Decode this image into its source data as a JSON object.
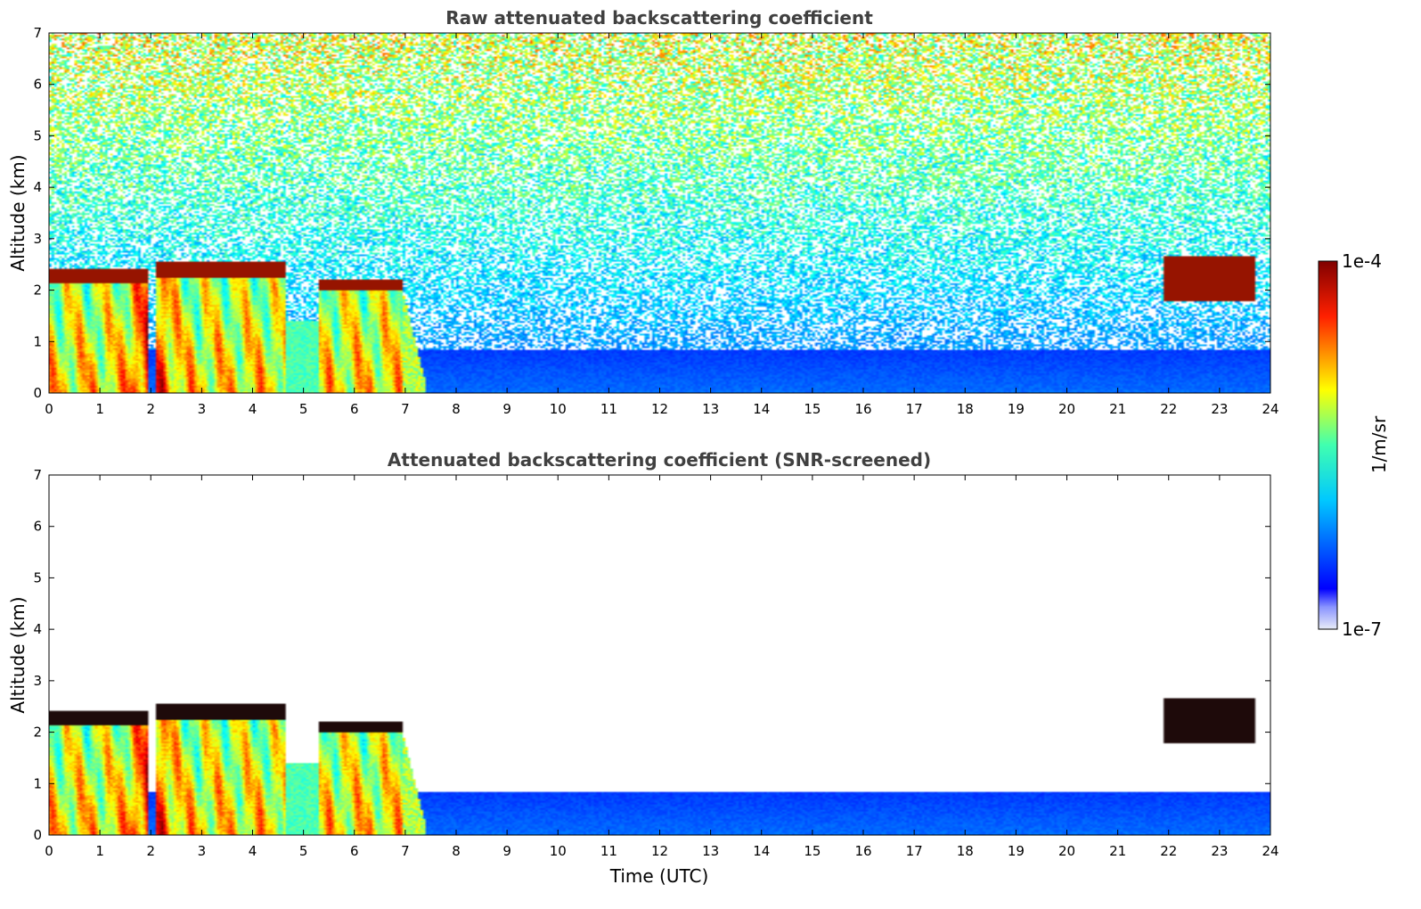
{
  "chart_data": [
    {
      "type": "heatmap",
      "title": "Raw attenuated backscattering coefficient",
      "xlabel": "",
      "ylabel": "Altitude (km)",
      "xlim": [
        0,
        24
      ],
      "ylim": [
        0,
        7
      ],
      "x_ticks": [
        "0",
        "1",
        "2",
        "3",
        "4",
        "5",
        "6",
        "7",
        "8",
        "9",
        "10",
        "11",
        "12",
        "13",
        "14",
        "15",
        "16",
        "17",
        "18",
        "19",
        "20",
        "21",
        "22",
        "23",
        "24"
      ],
      "y_ticks": [
        "0",
        "1",
        "2",
        "3",
        "4",
        "5",
        "6",
        "7"
      ],
      "screened": false
    },
    {
      "type": "heatmap",
      "title": "Attenuated backscattering coefficient (SNR-screened)",
      "xlabel": "Time (UTC)",
      "ylabel": "Altitude (km)",
      "xlim": [
        0,
        24
      ],
      "ylim": [
        0,
        7
      ],
      "x_ticks": [
        "0",
        "1",
        "2",
        "3",
        "4",
        "5",
        "6",
        "7",
        "8",
        "9",
        "10",
        "11",
        "12",
        "13",
        "14",
        "15",
        "16",
        "17",
        "18",
        "19",
        "20",
        "21",
        "22",
        "23",
        "24"
      ],
      "y_ticks": [
        "0",
        "1",
        "2",
        "3",
        "4",
        "5",
        "6",
        "7"
      ],
      "screened": true
    }
  ],
  "colorbar": {
    "max_label": "1e-4",
    "min_label": "1e-7",
    "label": "1/m/sr",
    "colormap": "jet",
    "scale": "log"
  },
  "features": {
    "cloud_layers": [
      {
        "t0": 0.0,
        "t1": 1.95,
        "base": 2.12,
        "top": 2.42
      },
      {
        "t0": 2.1,
        "t1": 4.65,
        "base": 2.25,
        "top": 2.55
      },
      {
        "t0": 5.3,
        "t1": 6.95,
        "base": 2.0,
        "top": 2.2
      },
      {
        "t0": 21.9,
        "t1": 23.7,
        "base": 1.8,
        "top": 2.65
      }
    ],
    "aerosol_top_km": 0.85,
    "precip_end_time": 7.4
  }
}
